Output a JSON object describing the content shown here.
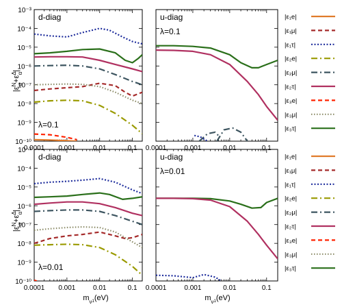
{
  "figure": {
    "ylabel_parts": [
      "|ε",
      "N",
      "α",
      "+ε",
      "Δ",
      "α",
      "|"
    ],
    "xlabel_parts": [
      "m",
      "ν",
      "1",
      "(eV)"
    ]
  },
  "chart_data": [
    {
      "type": "line",
      "id": "top-left",
      "annotations": [
        "d-diag",
        "λ=0.1"
      ],
      "xscale": "log",
      "yscale": "log",
      "xlim": [
        0.0001,
        0.2
      ],
      "ylim": [
        1e-10,
        0.001
      ],
      "xticks": [
        "0.0001",
        "0.001",
        "0.01",
        "0.1"
      ],
      "yticks": [
        "10⁻¹⁰",
        "10⁻⁹",
        "10⁻⁸",
        "10⁻⁷",
        "10⁻⁶",
        "10⁻⁵",
        "10⁻⁴",
        "10⁻³"
      ],
      "series": [
        {
          "name": "|ε₁e|",
          "color": "#e07b2a",
          "dash": "solid",
          "x": [
            0.0001,
            0.0003,
            0.001,
            0.002
          ],
          "y": [
            1.2e-10,
            1.15e-10,
            1.05e-10,
            1e-10
          ]
        },
        {
          "name": "|ε₁μ|",
          "color": "#a52a2a",
          "dash": "6,4",
          "x": [
            0.0001,
            0.0003,
            0.001,
            0.003,
            0.01,
            0.03,
            0.06,
            0.1,
            0.2
          ],
          "y": [
            5e-08,
            6e-08,
            7e-08,
            8e-08,
            1.2e-07,
            9e-08,
            4e-08,
            2.5e-08,
            4e-08
          ]
        },
        {
          "name": "|ε₁τ|",
          "color": "#1c2b9b",
          "dash": "2,2.5",
          "x": [
            0.0001,
            0.0003,
            0.001,
            0.003,
            0.01,
            0.02,
            0.05,
            0.1,
            0.2
          ],
          "y": [
            5e-05,
            4e-05,
            3.5e-05,
            6e-05,
            0.0001,
            8e-05,
            3.5e-05,
            2e-05,
            1.5e-05
          ]
        },
        {
          "name": "|ε₂e|",
          "color": "#9a9a00",
          "dash": "9,4,2,4",
          "x": [
            0.0001,
            0.0003,
            0.001,
            0.003,
            0.01,
            0.03,
            0.1,
            0.2
          ],
          "y": [
            1.2e-08,
            1.4e-08,
            1.5e-08,
            1.4e-08,
            8e-09,
            3e-09,
            7e-10,
            2.5e-10
          ]
        },
        {
          "name": "|ε₂μ|",
          "color": "#3d5560",
          "dash": "9,4,2,4",
          "x": [
            0.0001,
            0.0003,
            0.001,
            0.003,
            0.01,
            0.03,
            0.1,
            0.2
          ],
          "y": [
            1e-06,
            1.05e-06,
            1.1e-06,
            1e-06,
            7e-07,
            3.5e-07,
            1.5e-07,
            1e-07
          ]
        },
        {
          "name": "|ε₂τ|",
          "color": "#b03060",
          "dash": "solid",
          "x": [
            0.0001,
            0.0003,
            0.001,
            0.003,
            0.01,
            0.03,
            0.1,
            0.2
          ],
          "y": [
            3e-06,
            3.1e-06,
            3.1e-06,
            3e-06,
            2e-06,
            1.2e-06,
            7e-07,
            5e-07
          ]
        },
        {
          "name": "|ε₃e|",
          "color": "#ff2200",
          "dash": "6,4",
          "x": [
            0.0001,
            0.0003,
            0.001,
            0.002
          ],
          "y": [
            2.4e-10,
            2.2e-10,
            1.6e-10,
            1.2e-10
          ]
        },
        {
          "name": "|ε₃μ|",
          "color": "#8a8a66",
          "dash": "1.5,2.5",
          "x": [
            0.0001,
            0.0003,
            0.001,
            0.003,
            0.01,
            0.03,
            0.1,
            0.2
          ],
          "y": [
            1e-07,
            1.05e-07,
            1.1e-07,
            1.05e-07,
            8e-08,
            4e-08,
            1.5e-08,
            1e-08
          ]
        },
        {
          "name": "|ε₃τ|",
          "color": "#2a6f1a",
          "dash": "solid",
          "x": [
            0.0001,
            0.0003,
            0.001,
            0.003,
            0.01,
            0.03,
            0.06,
            0.1,
            0.15,
            0.2
          ],
          "y": [
            4.5e-06,
            5e-06,
            6e-06,
            7.5e-06,
            8e-06,
            5e-06,
            2e-06,
            1.5e-06,
            2.5e-06,
            4e-06
          ]
        }
      ]
    },
    {
      "type": "line",
      "id": "top-right",
      "annotations": [
        "u-diag",
        "λ=0.1"
      ],
      "xscale": "log",
      "yscale": "log",
      "xlim": [
        0.0001,
        0.2
      ],
      "ylim": [
        1e-10,
        0.001
      ],
      "xticks": [
        "0.0001",
        "0.001",
        "0.01",
        "0.1"
      ],
      "yticks": [],
      "series": [
        {
          "name": "|ε₃τ|",
          "color": "#2a6f1a",
          "dash": "solid",
          "x": [
            0.0001,
            0.0003,
            0.001,
            0.003,
            0.01,
            0.02,
            0.04,
            0.06,
            0.1,
            0.2
          ],
          "y": [
            1.2e-05,
            1.2e-05,
            1.1e-05,
            9e-06,
            4e-06,
            1.5e-06,
            8e-07,
            8e-07,
            1.2e-06,
            2e-06
          ]
        },
        {
          "name": "|ε₂τ|",
          "color": "#b03060",
          "dash": "solid",
          "x": [
            0.0001,
            0.0003,
            0.001,
            0.003,
            0.01,
            0.03,
            0.06,
            0.1,
            0.2
          ],
          "y": [
            7e-06,
            6.8e-06,
            6e-06,
            4e-06,
            1.2e-06,
            1.5e-07,
            3e-08,
            7e-09,
            1.3e-09
          ]
        },
        {
          "name": "|ε₂μ|",
          "color": "#3d5560",
          "dash": "9,4,2,4",
          "x": [
            0.0015,
            0.0025,
            0.004,
            0.0055
          ],
          "y": [
            1e-10,
            2.5e-10,
            3e-10,
            1.6e-10
          ]
        },
        {
          "name": "|ε₂μ|",
          "color": "#3d5560",
          "dash": "9,4,2,4",
          "x": [
            0.0045,
            0.007,
            0.012,
            0.02,
            0.03
          ],
          "y": [
            1e-10,
            4e-10,
            5e-10,
            3e-10,
            1e-10
          ]
        },
        {
          "name": "|ε₁τ|",
          "color": "#1c2b9b",
          "dash": "2,2.5",
          "x": [
            0.0011,
            0.0016,
            0.0025
          ],
          "y": [
            2e-10,
            1.7e-10,
            1e-10
          ]
        }
      ]
    },
    {
      "type": "line",
      "id": "bottom-left",
      "annotations": [
        "d-diag",
        "λ=0.01"
      ],
      "xscale": "log",
      "yscale": "log",
      "xlim": [
        0.0001,
        0.2
      ],
      "ylim": [
        1e-10,
        0.001
      ],
      "xticks": [
        "0.0001",
        "0.001",
        "0.01",
        "0.1"
      ],
      "yticks": [
        "10⁻¹⁰",
        "10⁻⁹",
        "10⁻⁸",
        "10⁻⁷",
        "10⁻⁶",
        "10⁻⁵",
        "10⁻⁴",
        "10⁻³"
      ],
      "series": [
        {
          "name": "|ε₁μ|",
          "color": "#a52a2a",
          "dash": "6,4",
          "x": [
            0.0001,
            0.0003,
            0.001,
            0.003,
            0.01,
            0.03,
            0.06,
            0.1,
            0.2
          ],
          "y": [
            1e-08,
            1.8e-08,
            2.5e-08,
            3e-08,
            4e-08,
            2.5e-08,
            1.8e-08,
            2e-08,
            3e-08
          ]
        },
        {
          "name": "|ε₁τ|",
          "color": "#1c2b9b",
          "dash": "2,2.5",
          "x": [
            0.0001,
            0.0003,
            0.001,
            0.003,
            0.01,
            0.03,
            0.1,
            0.2
          ],
          "y": [
            1.5e-05,
            1.8e-05,
            2e-05,
            2.3e-05,
            2.8e-05,
            1.8e-05,
            7e-06,
            4.5e-06
          ]
        },
        {
          "name": "|ε₂e|",
          "color": "#9a9a00",
          "dash": "9,4,2,4",
          "x": [
            0.0001,
            0.0003,
            0.001,
            0.003,
            0.01,
            0.03,
            0.1,
            0.2
          ],
          "y": [
            8e-09,
            8.5e-09,
            9e-09,
            8.5e-09,
            6e-09,
            2.5e-09,
            6e-10,
            2e-10
          ]
        },
        {
          "name": "|ε₂μ|",
          "color": "#3d5560",
          "dash": "9,4,2,4",
          "x": [
            0.0001,
            0.0003,
            0.001,
            0.003,
            0.01,
            0.03,
            0.1,
            0.2
          ],
          "y": [
            5e-07,
            5.5e-07,
            6e-07,
            6e-07,
            5e-07,
            3e-07,
            1.5e-07,
            1e-07
          ]
        },
        {
          "name": "|ε₂τ|",
          "color": "#b03060",
          "dash": "solid",
          "x": [
            0.0001,
            0.0003,
            0.001,
            0.003,
            0.01,
            0.03,
            0.1,
            0.2
          ],
          "y": [
            1.2e-06,
            1.4e-06,
            1.6e-06,
            1.6e-06,
            1.3e-06,
            8e-07,
            4e-07,
            3e-07
          ]
        },
        {
          "name": "|ε₃e|",
          "color": "#ff2200",
          "dash": "6,4",
          "x": [
            0.0001,
            0.00012
          ],
          "y": [
            1.1e-10,
            1e-10
          ]
        },
        {
          "name": "|ε₃μ|",
          "color": "#8a8a66",
          "dash": "1.5,2.5",
          "x": [
            0.0001,
            0.0003,
            0.001,
            0.003,
            0.01,
            0.03,
            0.1,
            0.2
          ],
          "y": [
            5e-08,
            6e-08,
            7e-08,
            7.5e-08,
            7e-08,
            4e-08,
            1.2e-08,
            6e-09
          ]
        },
        {
          "name": "|ε₃τ|",
          "color": "#2a6f1a",
          "dash": "solid",
          "x": [
            0.0001,
            0.0003,
            0.001,
            0.003,
            0.01,
            0.02,
            0.05,
            0.1,
            0.2
          ],
          "y": [
            2.8e-06,
            3e-06,
            3.3e-06,
            4e-06,
            4.8e-06,
            4e-06,
            2.2e-06,
            2.5e-06,
            3e-06
          ]
        }
      ]
    },
    {
      "type": "line",
      "id": "bottom-right",
      "annotations": [
        "u-diag",
        "λ=0.01"
      ],
      "xscale": "log",
      "yscale": "log",
      "xlim": [
        0.0001,
        0.2
      ],
      "ylim": [
        1e-10,
        0.001
      ],
      "xticks": [
        "0.0001",
        "0.001",
        "0.01",
        "0.1"
      ],
      "yticks": [],
      "series": [
        {
          "name": "|ε₃τ|",
          "color": "#2a6f1a",
          "dash": "solid",
          "x": [
            0.0001,
            0.0003,
            0.001,
            0.003,
            0.01,
            0.02,
            0.04,
            0.07,
            0.1,
            0.2
          ],
          "y": [
            2.5e-06,
            2.5e-06,
            2.5e-06,
            2.4e-06,
            1.8e-06,
            1.2e-06,
            7.5e-07,
            8e-07,
            1.5e-06,
            2.5e-06
          ]
        },
        {
          "name": "|ε₂τ|",
          "color": "#b03060",
          "dash": "solid",
          "x": [
            0.0001,
            0.0003,
            0.001,
            0.003,
            0.01,
            0.03,
            0.06,
            0.1,
            0.2
          ],
          "y": [
            2.5e-06,
            2.5e-06,
            2.4e-06,
            2e-06,
            9e-07,
            1.5e-07,
            3e-08,
            8e-09,
            1.5e-09
          ]
        },
        {
          "name": "|ε₁τ|",
          "color": "#1c2b9b",
          "dash": "2,2.5",
          "x": [
            0.0001,
            0.0003,
            0.001,
            0.002,
            0.004,
            0.006
          ],
          "y": [
            2e-10,
            1.9e-10,
            1.5e-10,
            2.2e-10,
            1.6e-10,
            1e-10
          ]
        }
      ]
    }
  ],
  "legend": {
    "placement": "right",
    "items": [
      {
        "label": "|ε₁e|",
        "color": "#e07b2a",
        "dash": "solid"
      },
      {
        "label": "|ε₁μ|",
        "color": "#a52a2a",
        "dash": "6,4"
      },
      {
        "label": "|ε₁τ|",
        "color": "#1c2b9b",
        "dash": "2,2.5"
      },
      {
        "label": "|ε₂e|",
        "color": "#9a9a00",
        "dash": "9,4,2,4"
      },
      {
        "label": "|ε₂μ|",
        "color": "#3d5560",
        "dash": "9,4,2,4"
      },
      {
        "label": "|ε₂τ|",
        "color": "#b03060",
        "dash": "solid"
      },
      {
        "label": "|ε₃e|",
        "color": "#ff2200",
        "dash": "6,4"
      },
      {
        "label": "|ε₃μ|",
        "color": "#8a8a66",
        "dash": "1.5,2.5"
      },
      {
        "label": "|ε₃τ|",
        "color": "#2a6f1a",
        "dash": "solid"
      }
    ]
  }
}
